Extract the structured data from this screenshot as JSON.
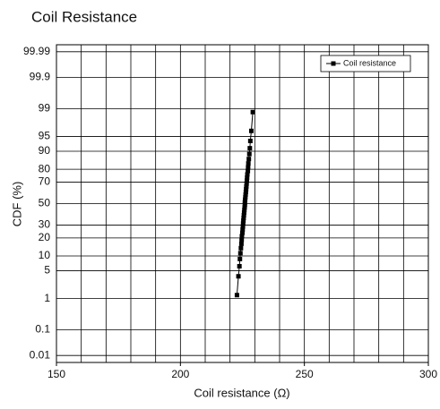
{
  "chart_data": {
    "type": "line",
    "title": "Coil Resistance",
    "xlabel": "Coil resistance (Ω)",
    "ylabel": "CDF (%)",
    "yscale": "normal-probability",
    "xlim": [
      150,
      300
    ],
    "xticks": [
      150,
      200,
      250,
      300
    ],
    "xgrid": [
      150,
      160,
      170,
      180,
      190,
      200,
      210,
      220,
      230,
      240,
      250,
      260,
      270,
      280,
      290,
      300
    ],
    "ylim": [
      0.005,
      99.995
    ],
    "yticks": [
      0.01,
      0.1,
      1,
      5,
      10,
      20,
      30,
      50,
      70,
      80,
      90,
      95,
      99,
      99.9,
      99.99
    ],
    "grid": true,
    "legend": "upper right",
    "series": [
      {
        "name": "Coil resistance",
        "color": "#000000",
        "x": [
          222.8,
          223.4,
          223.8,
          224.0,
          224.2,
          224.4,
          224.6,
          224.7,
          224.8,
          225.0,
          225.1,
          225.2,
          225.3,
          225.4,
          225.5,
          225.6,
          225.7,
          225.8,
          225.9,
          226.0,
          226.0,
          226.1,
          226.2,
          226.3,
          226.4,
          226.5,
          226.6,
          226.7,
          226.8,
          226.9,
          227.0,
          227.2,
          227.3,
          227.4,
          227.6,
          227.8,
          228.0,
          228.2,
          228.6,
          229.2
        ],
        "values": [
          1.25,
          3.75,
          6.25,
          8.75,
          11.25,
          13.75,
          16.25,
          18.75,
          21.25,
          23.75,
          26.25,
          28.75,
          31.25,
          33.75,
          36.25,
          38.75,
          41.25,
          43.75,
          46.25,
          48.75,
          51.25,
          53.75,
          56.25,
          58.75,
          61.25,
          63.75,
          66.25,
          68.75,
          71.25,
          73.75,
          76.25,
          78.75,
          81.25,
          83.75,
          86.25,
          88.75,
          91.25,
          93.75,
          96.25,
          98.75
        ]
      }
    ]
  }
}
